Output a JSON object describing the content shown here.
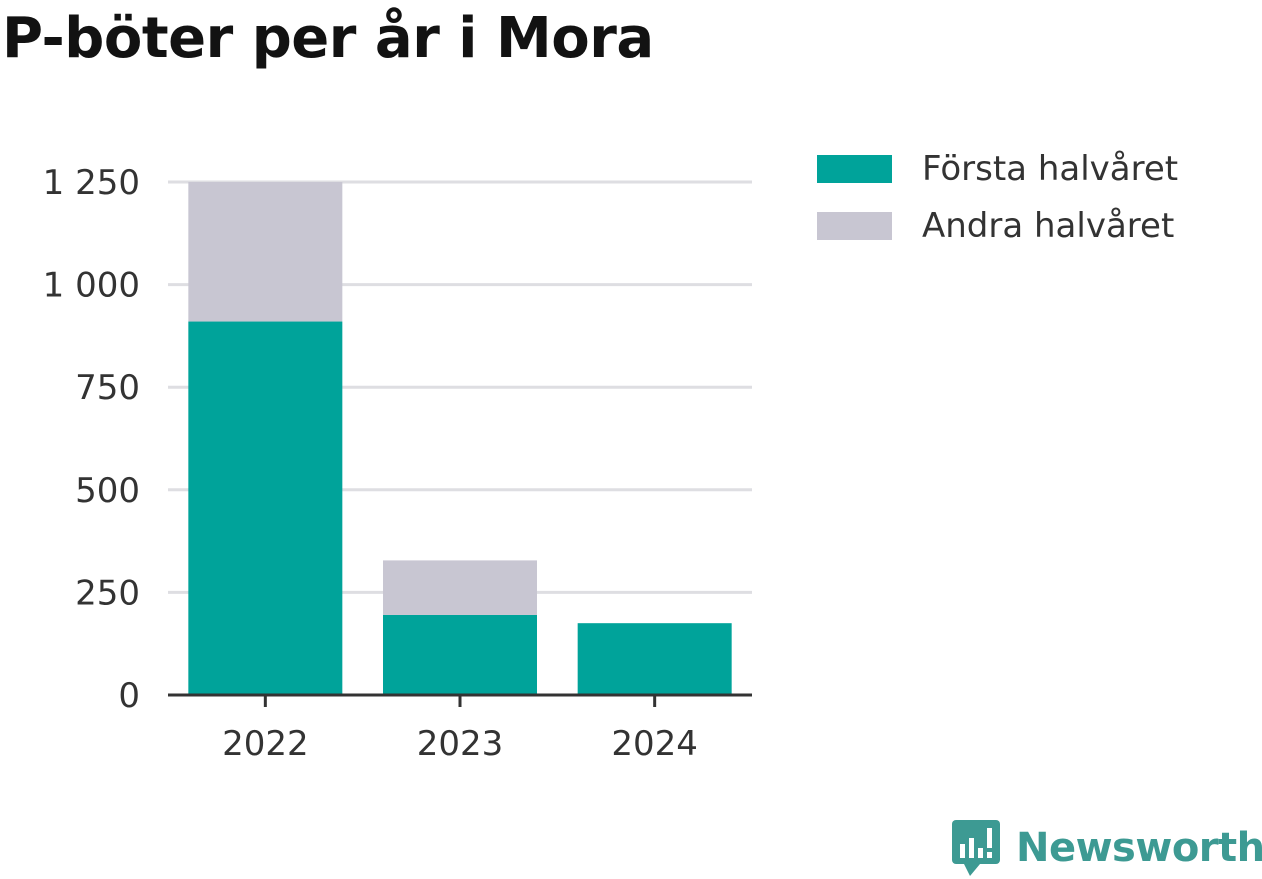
{
  "chart_data": {
    "type": "bar",
    "stacked": true,
    "title": "P-böter per år i Mora",
    "categories": [
      "2022",
      "2023",
      "2024"
    ],
    "series": [
      {
        "name": "Första halvåret",
        "color": "#00a39a",
        "values": [
          910,
          195,
          175
        ]
      },
      {
        "name": "Andra halvåret",
        "color": "#c8c6d2",
        "values": [
          340,
          133,
          0
        ]
      }
    ],
    "ylim": [
      0,
      1250
    ],
    "yticks": [
      0,
      250,
      500,
      750,
      1000,
      1250
    ],
    "ytick_labels": [
      "0",
      "250",
      "500",
      "750",
      "1 000",
      "1 250"
    ],
    "grid": true,
    "legend_position": "top-right"
  },
  "branding": {
    "label": "Newsworthy",
    "icon": "newsworthy-logo-icon"
  }
}
